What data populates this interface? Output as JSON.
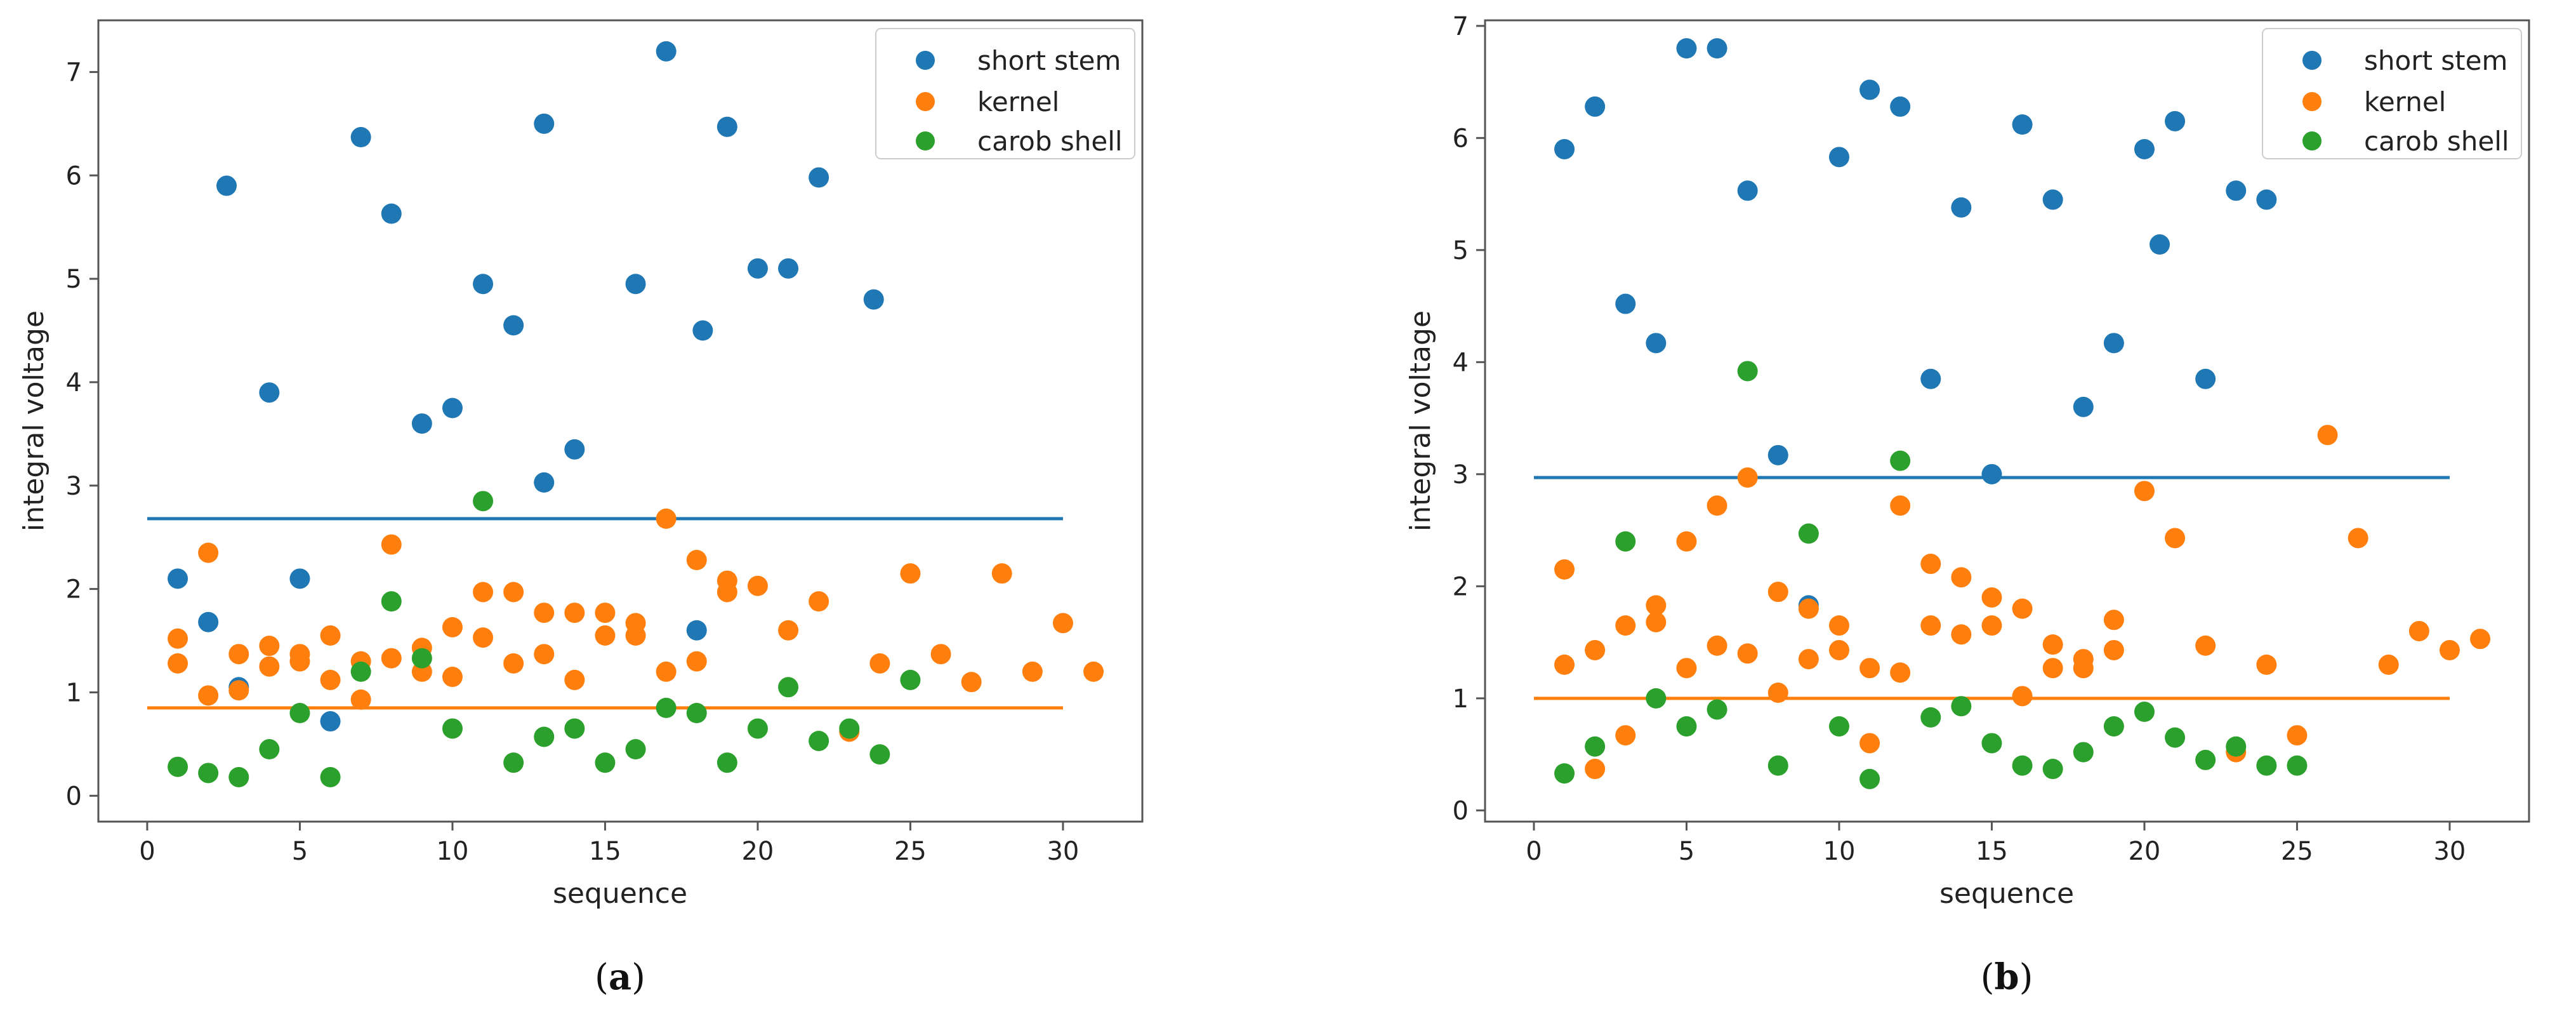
{
  "colors": {
    "short_stem": "#1f77b4",
    "kernel": "#ff7f0e",
    "carob_shell": "#2ca02c"
  },
  "chart_data": [
    {
      "type": "scatter",
      "caption": "(a)",
      "caption_letter": "a",
      "xlabel": "sequence",
      "ylabel": "integral voltage",
      "xlim": [
        -1.6,
        32.6
      ],
      "ylim": [
        -0.25,
        7.5
      ],
      "xticks": [
        0,
        5,
        10,
        15,
        20,
        25,
        30
      ],
      "xtick_labels": [
        "0",
        "5",
        "10",
        "15",
        "20",
        "25",
        "30"
      ],
      "yticks": [
        0,
        1,
        2,
        3,
        4,
        5,
        6,
        7
      ],
      "ytick_labels": [
        "0",
        "1",
        "2",
        "3",
        "4",
        "5",
        "6",
        "7"
      ],
      "legend_position": "top-right",
      "series": [
        {
          "name": "short stem",
          "color_key": "short_stem",
          "points": [
            [
              1,
              2.1
            ],
            [
              2,
              1.68
            ],
            [
              2.6,
              5.9
            ],
            [
              3,
              1.05
            ],
            [
              4,
              3.9
            ],
            [
              5,
              2.1
            ],
            [
              6,
              0.72
            ],
            [
              7,
              6.37
            ],
            [
              8,
              5.63
            ],
            [
              9,
              3.6
            ],
            [
              10,
              3.75
            ],
            [
              11,
              4.95
            ],
            [
              12,
              4.55
            ],
            [
              13,
              3.03
            ],
            [
              13,
              6.5
            ],
            [
              14,
              3.35
            ],
            [
              16,
              4.95
            ],
            [
              17,
              7.2
            ],
            [
              18,
              1.6
            ],
            [
              18.2,
              4.5
            ],
            [
              19,
              6.47
            ],
            [
              20,
              5.1
            ],
            [
              21,
              5.1
            ],
            [
              22,
              5.98
            ],
            [
              23.8,
              4.8
            ]
          ]
        },
        {
          "name": "kernel",
          "color_key": "kernel",
          "points": [
            [
              1,
              1.52
            ],
            [
              1,
              1.28
            ],
            [
              2,
              2.35
            ],
            [
              2,
              0.97
            ],
            [
              3,
              1.37
            ],
            [
              3,
              1.02
            ],
            [
              4,
              1.45
            ],
            [
              4,
              1.25
            ],
            [
              5,
              1.37
            ],
            [
              5,
              1.3
            ],
            [
              6,
              1.55
            ],
            [
              6,
              1.12
            ],
            [
              7,
              1.3
            ],
            [
              7,
              0.93
            ],
            [
              8,
              2.43
            ],
            [
              8,
              1.33
            ],
            [
              9,
              1.43
            ],
            [
              9,
              1.2
            ],
            [
              10,
              1.63
            ],
            [
              10,
              1.15
            ],
            [
              11,
              1.97
            ],
            [
              11,
              1.53
            ],
            [
              12,
              1.97
            ],
            [
              12,
              1.28
            ],
            [
              13,
              1.77
            ],
            [
              13,
              1.37
            ],
            [
              14,
              1.77
            ],
            [
              14,
              1.12
            ],
            [
              15,
              1.77
            ],
            [
              15,
              1.55
            ],
            [
              16,
              1.67
            ],
            [
              16,
              1.55
            ],
            [
              17,
              2.68
            ],
            [
              17,
              1.2
            ],
            [
              18,
              2.28
            ],
            [
              18,
              1.3
            ],
            [
              19,
              2.08
            ],
            [
              19,
              1.97
            ],
            [
              20,
              2.03
            ],
            [
              21,
              1.6
            ],
            [
              22,
              1.88
            ],
            [
              23,
              0.62
            ],
            [
              24,
              1.28
            ],
            [
              25,
              2.15
            ],
            [
              26,
              1.37
            ],
            [
              27,
              1.1
            ],
            [
              28,
              2.15
            ],
            [
              29,
              1.2
            ],
            [
              30,
              1.67
            ],
            [
              31,
              1.2
            ]
          ]
        },
        {
          "name": "carob shell",
          "color_key": "carob_shell",
          "points": [
            [
              1,
              0.28
            ],
            [
              2,
              0.22
            ],
            [
              3,
              0.18
            ],
            [
              4,
              0.45
            ],
            [
              5,
              0.8
            ],
            [
              6,
              0.18
            ],
            [
              7,
              1.2
            ],
            [
              8,
              1.88
            ],
            [
              9,
              1.33
            ],
            [
              10,
              0.65
            ],
            [
              11,
              2.85
            ],
            [
              12,
              0.32
            ],
            [
              13,
              0.57
            ],
            [
              14,
              0.65
            ],
            [
              15,
              0.32
            ],
            [
              16,
              0.45
            ],
            [
              17,
              0.85
            ],
            [
              18,
              0.8
            ],
            [
              19,
              0.32
            ],
            [
              20,
              0.65
            ],
            [
              21,
              1.05
            ],
            [
              22,
              0.53
            ],
            [
              23,
              0.65
            ],
            [
              24,
              0.4
            ],
            [
              25,
              1.12
            ]
          ]
        }
      ],
      "lines": [
        {
          "color_key": "short_stem",
          "y": 2.68,
          "x": [
            0,
            30
          ]
        },
        {
          "color_key": "kernel",
          "y": 0.85,
          "x": [
            0,
            30
          ]
        }
      ]
    },
    {
      "type": "scatter",
      "caption": "(b)",
      "caption_letter": "b",
      "xlabel": "sequence",
      "ylabel": "integral voltage",
      "xlim": [
        -1.6,
        32.6
      ],
      "ylim": [
        -0.1,
        7.05
      ],
      "xticks": [
        0,
        5,
        10,
        15,
        20,
        25,
        30
      ],
      "xtick_labels": [
        "0",
        "5",
        "10",
        "15",
        "20",
        "25",
        "30"
      ],
      "yticks": [
        0,
        1,
        2,
        3,
        4,
        5,
        6,
        7
      ],
      "ytick_labels": [
        "0",
        "1",
        "2",
        "3",
        "4",
        "5",
        "6",
        "7"
      ],
      "legend_position": "top-right",
      "series": [
        {
          "name": "short stem",
          "color_key": "short_stem",
          "points": [
            [
              1,
              5.9
            ],
            [
              2,
              6.28
            ],
            [
              3,
              4.52
            ],
            [
              4,
              4.17
            ],
            [
              5,
              6.8
            ],
            [
              6,
              6.8
            ],
            [
              7,
              5.53
            ],
            [
              8,
              3.17
            ],
            [
              9,
              1.83
            ],
            [
              10,
              5.83
            ],
            [
              11,
              6.43
            ],
            [
              12,
              6.28
            ],
            [
              13,
              3.85
            ],
            [
              14,
              5.38
            ],
            [
              15,
              3.0
            ],
            [
              16,
              6.12
            ],
            [
              17,
              5.45
            ],
            [
              18,
              3.6
            ],
            [
              19,
              4.17
            ],
            [
              20,
              5.9
            ],
            [
              20.5,
              5.05
            ],
            [
              21,
              6.15
            ],
            [
              22,
              3.85
            ],
            [
              23,
              5.53
            ],
            [
              24,
              5.45
            ]
          ]
        },
        {
          "name": "kernel",
          "color_key": "kernel",
          "points": [
            [
              1,
              2.15
            ],
            [
              1,
              1.3
            ],
            [
              2,
              1.43
            ],
            [
              2,
              0.37
            ],
            [
              3,
              1.65
            ],
            [
              3,
              0.67
            ],
            [
              4,
              1.83
            ],
            [
              4,
              1.68
            ],
            [
              5,
              2.4
            ],
            [
              5,
              1.27
            ],
            [
              6,
              2.72
            ],
            [
              6,
              1.47
            ],
            [
              7,
              2.97
            ],
            [
              7,
              1.4
            ],
            [
              8,
              1.95
            ],
            [
              8,
              1.05
            ],
            [
              9,
              1.8
            ],
            [
              9,
              1.35
            ],
            [
              10,
              1.65
            ],
            [
              10,
              1.43
            ],
            [
              11,
              1.27
            ],
            [
              11,
              0.6
            ],
            [
              12,
              2.72
            ],
            [
              12,
              1.23
            ],
            [
              13,
              2.2
            ],
            [
              13,
              1.65
            ],
            [
              14,
              2.08
            ],
            [
              14,
              1.57
            ],
            [
              15,
              1.9
            ],
            [
              15,
              1.65
            ],
            [
              16,
              1.8
            ],
            [
              16,
              1.02
            ],
            [
              17,
              1.48
            ],
            [
              17,
              1.27
            ],
            [
              18,
              1.35
            ],
            [
              18,
              1.27
            ],
            [
              19,
              1.7
            ],
            [
              19,
              1.43
            ],
            [
              20,
              2.85
            ],
            [
              21,
              2.43
            ],
            [
              22,
              1.47
            ],
            [
              23,
              0.52
            ],
            [
              24,
              1.3
            ],
            [
              25,
              0.67
            ],
            [
              26,
              3.35
            ],
            [
              27,
              2.43
            ],
            [
              28,
              1.3
            ],
            [
              29,
              1.6
            ],
            [
              30,
              1.43
            ],
            [
              31,
              1.53
            ]
          ]
        },
        {
          "name": "carob shell",
          "color_key": "carob_shell",
          "points": [
            [
              1,
              0.33
            ],
            [
              2,
              0.57
            ],
            [
              3,
              2.4
            ],
            [
              4,
              1.0
            ],
            [
              5,
              0.75
            ],
            [
              6,
              0.9
            ],
            [
              7,
              3.92
            ],
            [
              8,
              0.4
            ],
            [
              9,
              2.47
            ],
            [
              10,
              0.75
            ],
            [
              11,
              0.28
            ],
            [
              12,
              3.12
            ],
            [
              13,
              0.83
            ],
            [
              14,
              0.93
            ],
            [
              15,
              0.6
            ],
            [
              16,
              0.4
            ],
            [
              17,
              0.37
            ],
            [
              18,
              0.52
            ],
            [
              19,
              0.75
            ],
            [
              20,
              0.88
            ],
            [
              21,
              0.65
            ],
            [
              22,
              0.45
            ],
            [
              23,
              0.57
            ],
            [
              24,
              0.4
            ],
            [
              25,
              0.4
            ]
          ]
        }
      ],
      "lines": [
        {
          "color_key": "short_stem",
          "y": 2.97,
          "x": [
            0,
            30
          ]
        },
        {
          "color_key": "kernel",
          "y": 1.0,
          "x": [
            0,
            30
          ]
        }
      ]
    }
  ]
}
